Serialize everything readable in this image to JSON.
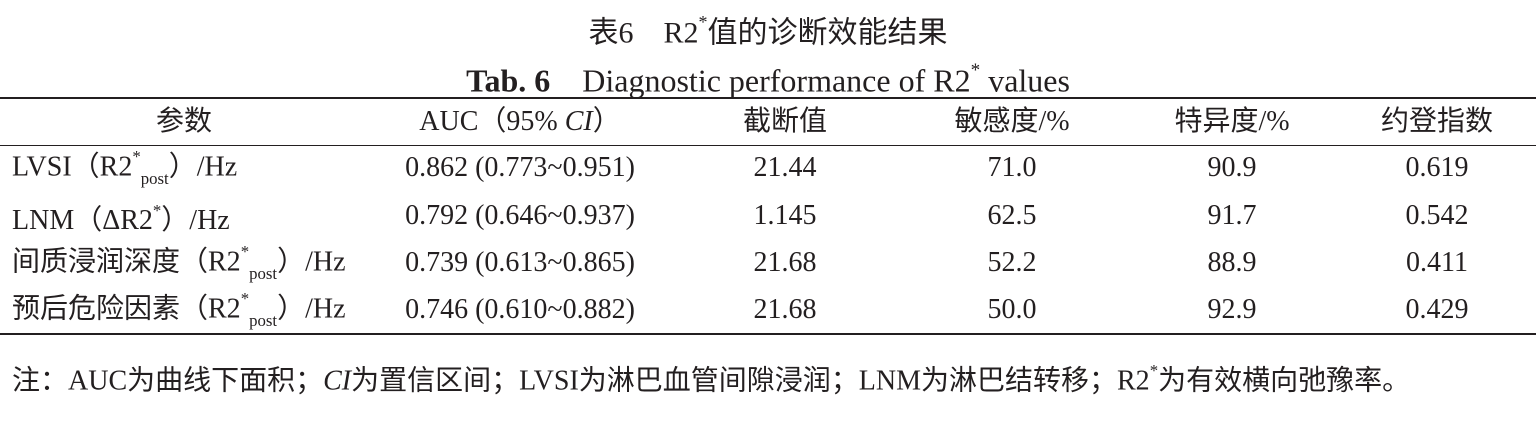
{
  "title_cn": [
    {
      "t": "表6　R2"
    },
    {
      "t": "*",
      "s": "sup"
    },
    {
      "t": "值的诊断效能结果"
    }
  ],
  "title_en": [
    {
      "t": "Tab. 6",
      "s": "b"
    },
    {
      "t": "　Diagnostic performance of R2"
    },
    {
      "t": "*",
      "s": "sup"
    },
    {
      "t": " values"
    }
  ],
  "table": {
    "header": [
      "参数",
      [
        {
          "t": "AUC（95% "
        },
        {
          "t": "CI",
          "s": "i"
        },
        {
          "t": "）"
        }
      ],
      "截断值",
      "敏感度/%",
      "特异度/%",
      "约登指数"
    ],
    "rows": [
      [
        [
          {
            "t": "LVSI（R2"
          },
          {
            "t": "*",
            "s": "sup"
          },
          {
            "t": "post",
            "s": "sub"
          },
          {
            "t": "）/Hz"
          }
        ],
        "0.862 (0.773~0.951)",
        "21.44",
        "71.0",
        "90.9",
        "0.619"
      ],
      [
        [
          {
            "t": "LNM（ΔR2"
          },
          {
            "t": "*",
            "s": "sup"
          },
          {
            "t": "）/Hz"
          }
        ],
        "0.792 (0.646~0.937)",
        "1.145",
        "62.5",
        "91.7",
        "0.542"
      ],
      [
        [
          {
            "t": "间质浸润深度（R2"
          },
          {
            "t": "*",
            "s": "sup"
          },
          {
            "t": "post",
            "s": "sub"
          },
          {
            "t": "）/Hz"
          }
        ],
        "0.739 (0.613~0.865)",
        "21.68",
        "52.2",
        "88.9",
        "0.411"
      ],
      [
        [
          {
            "t": "预后危险因素（R2"
          },
          {
            "t": "*",
            "s": "sup"
          },
          {
            "t": "post",
            "s": "sub"
          },
          {
            "t": "）/Hz"
          }
        ],
        "0.746 (0.610~0.882)",
        "21.68",
        "50.0",
        "92.9",
        "0.429"
      ]
    ]
  },
  "note": [
    {
      "t": "注：AUC为曲线下面积；"
    },
    {
      "t": "CI",
      "s": "i"
    },
    {
      "t": "为置信区间；LVSI为淋巴血管间隙浸润；LNM为淋巴结转移；R2"
    },
    {
      "t": "*",
      "s": "sup"
    },
    {
      "t": "为有效横向弛豫率。"
    }
  ]
}
